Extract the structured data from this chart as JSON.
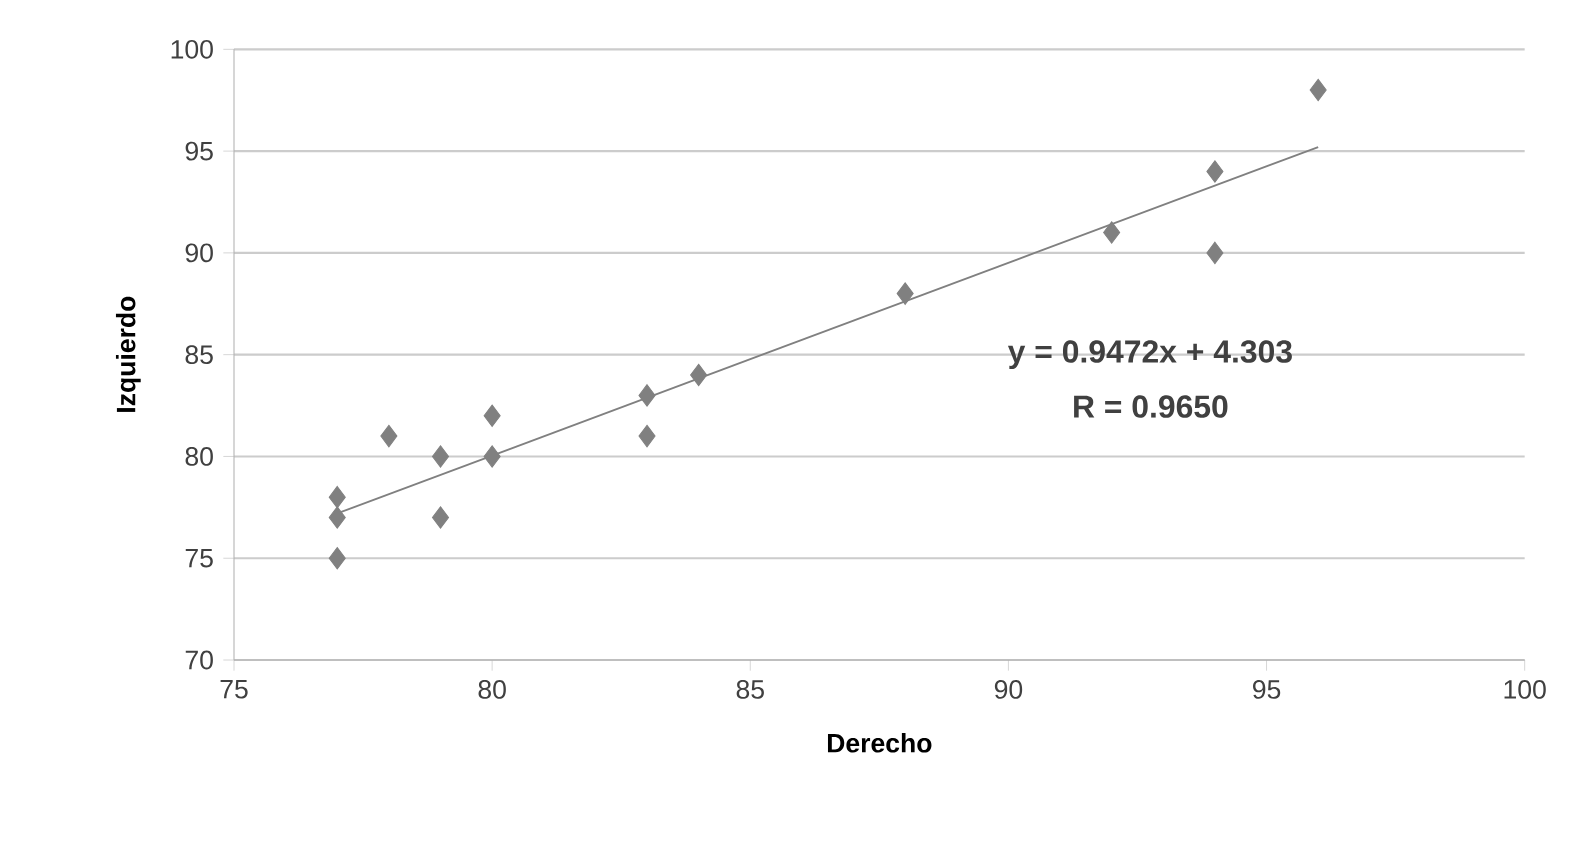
{
  "chart_data": {
    "type": "scatter",
    "xlabel": "Derecho",
    "ylabel": "Izquierdo",
    "xlim": [
      75,
      100
    ],
    "xticks": [
      75,
      80,
      85,
      90,
      95,
      100
    ],
    "ylim": [
      70,
      100
    ],
    "yticks": [
      70,
      75,
      80,
      85,
      90,
      95,
      100
    ],
    "grid": "y",
    "marker": "diamond",
    "series": [
      {
        "color": "#808080",
        "x": [
          77,
          77,
          77,
          78,
          79,
          79,
          80,
          80,
          83,
          83,
          84,
          88,
          92,
          94,
          94,
          96
        ],
        "values": [
          75,
          77,
          78,
          81,
          80,
          77,
          82,
          80,
          83,
          81,
          84,
          88,
          91,
          94,
          90,
          98
        ]
      },
      {
        "type": "line",
        "color": "#808080",
        "marker": "none",
        "x": [
          77,
          96
        ],
        "values": [
          77.2,
          95.2
        ]
      }
    ],
    "annotations": [
      "y = 0.9472x + 4.303",
      "R = 0.9650"
    ]
  }
}
